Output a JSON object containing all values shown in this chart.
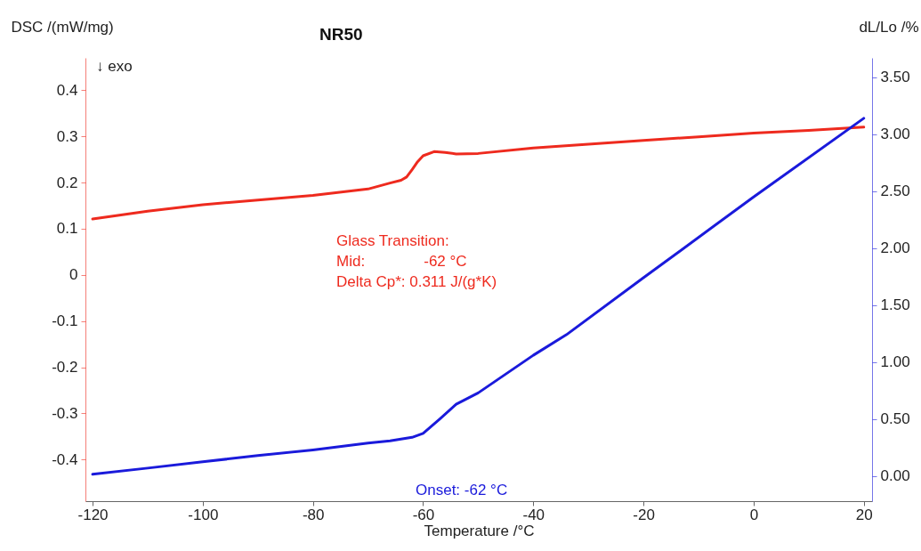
{
  "chart_data": {
    "type": "line",
    "title": "NR50",
    "xlabel": "Temperature /°C",
    "ylabel": "DSC /(mW/mg)",
    "y2label": "dL/Lo /%",
    "xlim": [
      -121.3,
      21.5
    ],
    "xticks": [
      -120,
      -100,
      -80,
      -60,
      -40,
      -20,
      0,
      20
    ],
    "ylim": [
      -0.49,
      0.47
    ],
    "yticks": [
      -0.4,
      -0.3,
      -0.2,
      -0.1,
      0,
      0.1,
      0.2,
      0.3,
      0.4
    ],
    "y2lim": [
      -0.22,
      3.67
    ],
    "y2ticks": [
      {
        "value": 0,
        "label": "0.00"
      },
      {
        "value": 0.5,
        "label": "0.50"
      },
      {
        "value": 1,
        "label": "1.00"
      },
      {
        "value": 1.5,
        "label": "1.50"
      },
      {
        "value": 2,
        "label": "2.00"
      },
      {
        "value": 2.5,
        "label": "2.50"
      },
      {
        "value": 3,
        "label": "3.00"
      },
      {
        "value": 3.5,
        "label": "3.50"
      }
    ],
    "series": [
      {
        "color": "#ee2a1e",
        "x": [
          -120,
          -110,
          -100,
          -90,
          -80,
          -70,
          -66,
          -64,
          -63,
          -62,
          -61,
          -60,
          -58,
          -56,
          -54,
          -50,
          -40,
          -30,
          -20,
          -10,
          0,
          10,
          20
        ],
        "values": [
          0.121,
          0.138,
          0.152,
          0.162,
          0.172,
          0.186,
          0.199,
          0.205,
          0.212,
          0.228,
          0.245,
          0.258,
          0.267,
          0.265,
          0.262,
          0.263,
          0.275,
          0.283,
          0.291,
          0.299,
          0.307,
          0.313,
          0.32
        ]
      },
      {
        "color": "#1a1adb",
        "axis": "y2",
        "x": [
          -120,
          -110,
          -100,
          -90,
          -80,
          -70,
          -66,
          -62,
          -60,
          -57,
          -54,
          -50,
          -40,
          -34,
          -20,
          0,
          20
        ],
        "values": [
          0.016,
          0.07,
          0.125,
          0.18,
          0.23,
          0.29,
          0.31,
          0.34,
          0.375,
          0.5,
          0.63,
          0.73,
          1.06,
          1.24,
          1.74,
          2.45,
          3.14
        ]
      }
    ],
    "annotations": [
      "↓ exo",
      "Glass Transition:",
      "Mid:              -62 °C",
      "Delta Cp*: 0.311 J/(g*K)",
      "Onset: -62 °C"
    ]
  }
}
